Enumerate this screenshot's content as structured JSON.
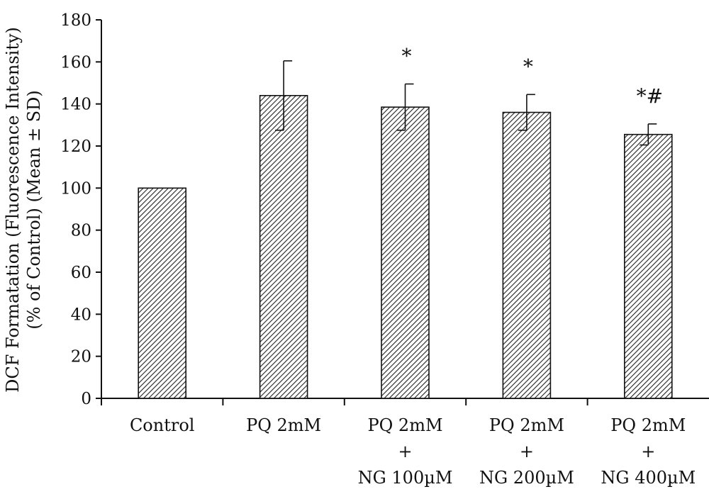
{
  "chart_data": {
    "type": "bar",
    "ylabel_line1": "DCF Formatation (Fluorescence Intensity)",
    "ylabel_line2": "(% of Control) (Mean ± SD)",
    "ylim": [
      0,
      180
    ],
    "yticks": [
      0,
      20,
      40,
      60,
      80,
      100,
      120,
      140,
      160,
      180
    ],
    "grid": false,
    "pattern": "diagonal-hatch",
    "categories": [
      [
        "Control"
      ],
      [
        "PQ 2mM"
      ],
      [
        "PQ 2mM",
        "+",
        "NG 100µM"
      ],
      [
        "PQ 2mM",
        "+",
        "NG 200µM"
      ],
      [
        "PQ 2mM",
        "+",
        "NG 400µM"
      ]
    ],
    "values": [
      100,
      144,
      138.5,
      136,
      125.5
    ],
    "errors": [
      null,
      16.5,
      11,
      8.5,
      5
    ],
    "annotations": [
      "",
      "",
      "*",
      "*",
      "*#"
    ]
  }
}
